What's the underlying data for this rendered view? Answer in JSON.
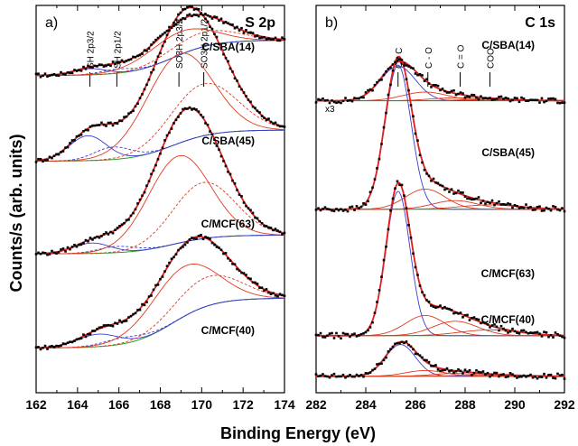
{
  "chart_data": [
    {
      "type": "line",
      "panel_label": "a)",
      "title": "S 2p",
      "xlabel": "Binding Energy (eV)",
      "ylabel": "Counts/s (arb. units)",
      "xlim": [
        162,
        174
      ],
      "xticks": [
        "162",
        "164",
        "166",
        "168",
        "170",
        "172",
        "174"
      ],
      "xtick_values": [
        162,
        164,
        166,
        168,
        170,
        172,
        174
      ],
      "grid": false,
      "peak_markers": [
        {
          "label": "SH 2p3/2",
          "x": 164.6
        },
        {
          "label": "SH 2p1/2",
          "x": 165.9
        },
        {
          "label": "SO3H 2p3/2",
          "x": 168.9
        },
        {
          "label": "SO3H 2p1/2",
          "x": 170.1
        }
      ],
      "series": [
        {
          "name": "C/SBA(14)",
          "baseline": 0.08,
          "bg_end": 0.25,
          "peaks": [
            [
              164.6,
              0.03,
              0.8
            ],
            [
              165.9,
              0.02,
              0.8
            ],
            [
              168.9,
              0.11,
              1.6
            ],
            [
              170.1,
              0.07,
              1.6
            ]
          ]
        },
        {
          "name": "C/SBA(45)",
          "baseline": 0.05,
          "bg_end": 0.2,
          "peaks": [
            [
              164.5,
              0.12,
              0.9
            ],
            [
              165.7,
              0.06,
              0.9
            ],
            [
              168.9,
              0.43,
              1.6
            ],
            [
              170.1,
              0.25,
              1.6
            ]
          ]
        },
        {
          "name": "C/MCF(63)",
          "baseline": 0.03,
          "bg_end": 0.12,
          "peaks": [
            [
              164.7,
              0.05,
              0.9
            ],
            [
              165.9,
              0.03,
              0.9
            ],
            [
              168.9,
              0.42,
              1.5
            ],
            [
              170.1,
              0.27,
              1.5
            ]
          ]
        },
        {
          "name": "C/MCF(40)",
          "baseline": 0.02,
          "bg_end": 0.26,
          "peaks": [
            [
              165.0,
              0.06,
              1.0
            ],
            [
              166.2,
              0.03,
              1.0
            ],
            [
              169.1,
              0.24,
              1.6
            ],
            [
              170.3,
              0.14,
              1.6
            ]
          ]
        }
      ]
    },
    {
      "type": "line",
      "panel_label": "b)",
      "title": "C 1s",
      "xlabel": "Binding Energy (eV)",
      "xlim": [
        282,
        292
      ],
      "xticks": [
        "282",
        "284",
        "286",
        "288",
        "290",
        "292"
      ],
      "xtick_values": [
        282,
        284,
        286,
        288,
        290,
        292
      ],
      "grid": false,
      "multiplier_note": "x3",
      "peak_markers": [
        {
          "label": "C - C",
          "x": 285.3
        },
        {
          "label": "C - O",
          "x": 286.5
        },
        {
          "label": "C = O",
          "x": 287.8
        },
        {
          "label": "COO-",
          "x": 289.0
        }
      ],
      "series": [
        {
          "name": "C/SBA(14)",
          "baseline": 0.02,
          "peaks": [
            [
              285.3,
              0.12,
              0.7
            ],
            [
              286.4,
              0.03,
              0.9
            ],
            [
              287.6,
              0.01,
              1.0
            ],
            [
              289.0,
              0.005,
              1.2
            ]
          ]
        },
        {
          "name": "C/SBA(45)",
          "baseline": 0.01,
          "peaks": [
            [
              285.3,
              0.5,
              0.52
            ],
            [
              286.4,
              0.07,
              0.8
            ],
            [
              287.6,
              0.03,
              0.9
            ],
            [
              289.0,
              0.015,
              1.2
            ]
          ]
        },
        {
          "name": "C/MCF(63)",
          "baseline": 0.01,
          "peaks": [
            [
              285.3,
              0.5,
              0.48
            ],
            [
              286.4,
              0.07,
              0.8
            ],
            [
              287.6,
              0.05,
              0.9
            ],
            [
              289.0,
              0.02,
              1.2
            ]
          ]
        },
        {
          "name": "C/MCF(40)",
          "baseline": 0.01,
          "peaks": [
            [
              285.4,
              0.11,
              0.6
            ],
            [
              286.4,
              0.02,
              0.8
            ],
            [
              287.6,
              0.01,
              0.9
            ],
            [
              289.0,
              0.005,
              1.2
            ]
          ]
        }
      ]
    }
  ],
  "colors": {
    "data_points": "#000000",
    "envelope": "#e02020",
    "main_component": "#e03a1e",
    "secondary_component": "#3b3bd0",
    "background": "#2a9a2a"
  }
}
